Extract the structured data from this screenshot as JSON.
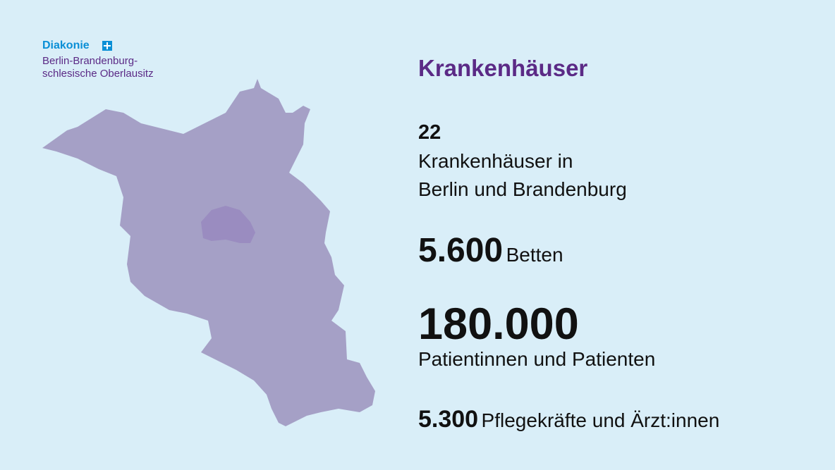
{
  "logo": {
    "name": "Diakonie",
    "lines": [
      "Berlin-Brandenburg-",
      "schlesische Oberlausitz"
    ]
  },
  "title": "Krankenhäuser",
  "stats": [
    {
      "number": "22",
      "label_lines": [
        "Krankenhäuser in",
        "Berlin und Brandenburg"
      ]
    },
    {
      "number": "5.600",
      "label": "Betten"
    },
    {
      "number": "180.000",
      "label": "Patientinnen und Patienten"
    },
    {
      "number": "5.300",
      "label": "Pflegekräfte und Ärzt:innen"
    }
  ]
}
